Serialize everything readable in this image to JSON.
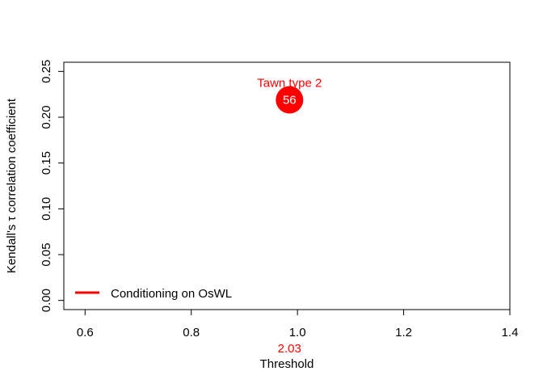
{
  "chart_data": {
    "type": "scatter",
    "title": "",
    "xlabel": "Threshold",
    "ylabel": "Kendall's τ correlation coefficient",
    "xlim": [
      0.56,
      1.4
    ],
    "ylim": [
      -0.01,
      0.26
    ],
    "x_ticks": [
      0.6,
      0.8,
      1.0,
      1.2,
      1.4
    ],
    "x_tick_labels": [
      "0.6",
      "0.8",
      "1.0",
      "1.2",
      "1.4"
    ],
    "y_ticks": [
      0.0,
      0.05,
      0.1,
      0.15,
      0.2,
      0.25
    ],
    "y_tick_labels": [
      "0.00",
      "0.05",
      "0.10",
      "0.15",
      "0.20",
      "0.25"
    ],
    "grid": false,
    "legend": {
      "position": "bottom-left",
      "entries": [
        {
          "label": "Conditioning on OsWL",
          "color": "#ff0000"
        }
      ]
    },
    "series": [
      {
        "name": "Conditioning on OsWL",
        "color": "#ff0000",
        "points": [
          {
            "x": 0.985,
            "y": 0.219,
            "point_label": "56",
            "annotation": "Tawn type 2",
            "threshold_label": "2.03"
          }
        ]
      }
    ]
  }
}
